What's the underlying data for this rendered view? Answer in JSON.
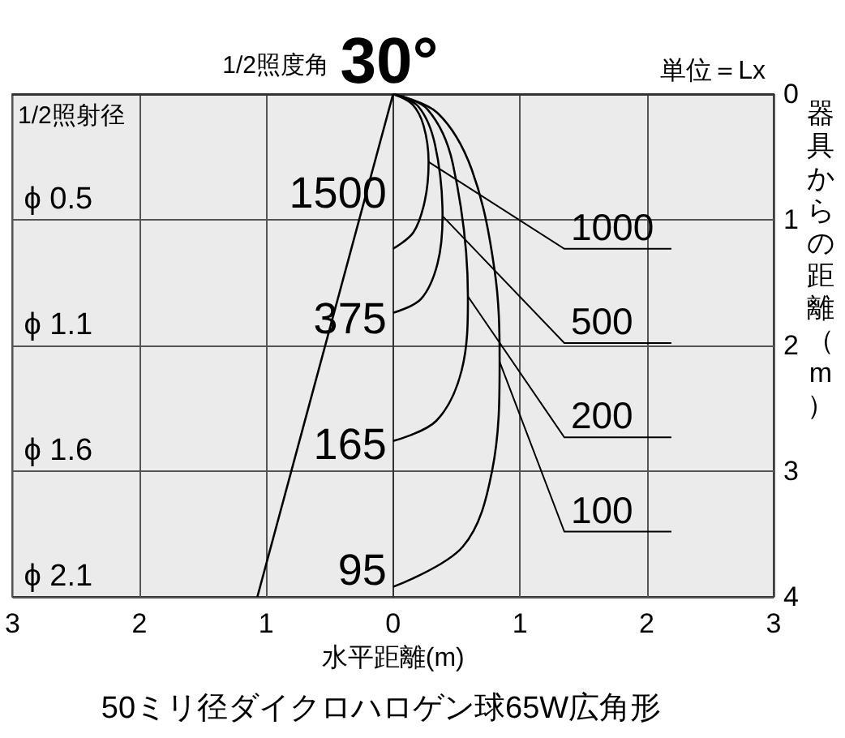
{
  "chart_data": {
    "type": "line",
    "title": "30°",
    "subtitle": "1/2照度角",
    "xlabel": "水平距離(m)",
    "ylabel": "器具からの距離（m）",
    "xlim": [
      -3,
      3
    ],
    "xticks": [
      {
        "value": -3,
        "label": "3"
      },
      {
        "value": -2,
        "label": "2"
      },
      {
        "value": -1,
        "label": "1"
      },
      0,
      1,
      2,
      3
    ],
    "ylim": [
      4,
      0
    ],
    "yticks": [
      0,
      1,
      2,
      3,
      4
    ],
    "grid": true,
    "legend": false,
    "marker": "none",
    "series": [
      {
        "name": "1000",
        "color": "#000000",
        "x": [
          0,
          0.15,
          0.24,
          0.28,
          0.25,
          0.16,
          0
        ],
        "values": [
          0,
          0.08,
          0.25,
          0.54,
          0.85,
          1.1,
          1.23
        ]
      },
      {
        "name": "500",
        "color": "#000000",
        "x": [
          0,
          0.2,
          0.33,
          0.39,
          0.35,
          0.22,
          0
        ],
        "values": [
          0,
          0.1,
          0.4,
          0.97,
          1.35,
          1.63,
          1.74
        ]
      },
      {
        "name": "200",
        "color": "#000000",
        "x": [
          0,
          0.27,
          0.47,
          0.59,
          0.54,
          0.34,
          0
        ],
        "values": [
          0,
          0.12,
          0.55,
          1.61,
          2.2,
          2.6,
          2.76
        ]
      },
      {
        "name": "100",
        "color": "#000000",
        "x": [
          0,
          0.35,
          0.62,
          0.8,
          0.84,
          0.78,
          0.55,
          0
        ],
        "values": [
          0,
          0.15,
          0.6,
          1.4,
          2.13,
          3.0,
          3.6,
          3.92
        ]
      },
      {
        "color": "#000000",
        "x": [
          0,
          -1.07
        ],
        "values": [
          0,
          4
        ]
      }
    ],
    "annotations": [
      "1/2照射径",
      "単位＝Lx",
      "50ミリ径ダイクロハロゲン球65W広角形",
      "1500",
      "375",
      "165",
      "95",
      "ϕ 0.5",
      "ϕ 1.1",
      "ϕ 1.6",
      "ϕ 2.1"
    ]
  }
}
